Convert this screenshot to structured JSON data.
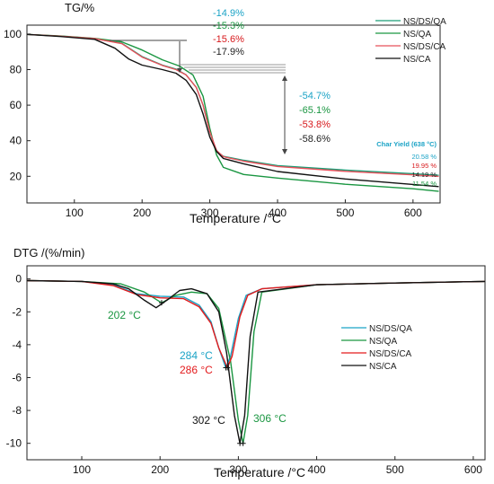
{
  "chart_data": [
    {
      "type": "line",
      "title": "",
      "ylabel": "TG/%",
      "xlabel": "Temperature /°C",
      "xlim": [
        30,
        640
      ],
      "ylim": [
        5,
        105
      ],
      "x_ticks": [
        "100",
        "200",
        "300",
        "400",
        "500",
        "600"
      ],
      "y_ticks": [
        "20",
        "40",
        "60",
        "80",
        "100"
      ],
      "legend_position": "top-right",
      "series": [
        {
          "name": "NS/DS/QA",
          "color": "#1b9e77",
          "points": [
            [
              30,
              99.8
            ],
            [
              80,
              98.8
            ],
            [
              130,
              97.4
            ],
            [
              170,
              94.8
            ],
            [
              200,
              87.3
            ],
            [
              230,
              82.5
            ],
            [
              250,
              80.3
            ],
            [
              265,
              77
            ],
            [
              280,
              70
            ],
            [
              290,
              60
            ],
            [
              300,
              45
            ],
            [
              310,
              34
            ],
            [
              320,
              31.2
            ],
            [
              350,
              29
            ],
            [
              400,
              26
            ],
            [
              500,
              23.5
            ],
            [
              600,
              21.4
            ],
            [
              638,
              20.58
            ]
          ]
        },
        {
          "name": "NS/QA",
          "color": "#1a9641",
          "points": [
            [
              30,
              99.8
            ],
            [
              80,
              98.9
            ],
            [
              130,
              97.6
            ],
            [
              170,
              95.6
            ],
            [
              200,
              91
            ],
            [
              230,
              85.5
            ],
            [
              255,
              82
            ],
            [
              275,
              77
            ],
            [
              290,
              65
            ],
            [
              300,
              47
            ],
            [
              310,
              32
            ],
            [
              320,
              25
            ],
            [
              350,
              21
            ],
            [
              400,
              19
            ],
            [
              500,
              15.5
            ],
            [
              600,
              13
            ],
            [
              638,
              11.54
            ]
          ]
        },
        {
          "name": "NS/DS/CA",
          "color": "#e8505b",
          "points": [
            [
              30,
              99.8
            ],
            [
              80,
              98.8
            ],
            [
              130,
              97.4
            ],
            [
              170,
              94.6
            ],
            [
              200,
              87
            ],
            [
              230,
              82.3
            ],
            [
              250,
              80
            ],
            [
              265,
              77
            ],
            [
              280,
              70
            ],
            [
              290,
              60
            ],
            [
              300,
              45
            ],
            [
              310,
              34.5
            ],
            [
              320,
              31
            ],
            [
              350,
              28.5
            ],
            [
              400,
              25.5
            ],
            [
              500,
              22.8
            ],
            [
              600,
              20.8
            ],
            [
              638,
              19.95
            ]
          ]
        },
        {
          "name": "NS/CA",
          "color": "#111111",
          "points": [
            [
              30,
              99.8
            ],
            [
              80,
              98.6
            ],
            [
              130,
              97
            ],
            [
              160,
              92
            ],
            [
              180,
              86
            ],
            [
              200,
              82.5
            ],
            [
              230,
              80
            ],
            [
              250,
              78
            ],
            [
              265,
              74
            ],
            [
              280,
              66
            ],
            [
              290,
              55
            ],
            [
              300,
              42
            ],
            [
              310,
              34
            ],
            [
              320,
              30
            ],
            [
              350,
              27
            ],
            [
              400,
              22.7
            ],
            [
              500,
              18.5
            ],
            [
              600,
              15.4
            ],
            [
              638,
              14.19
            ]
          ]
        }
      ],
      "annotations": {
        "group1": [
          {
            "text": "-14.9%",
            "color": "#1ba3c6"
          },
          {
            "text": "-15.3%",
            "color": "#1a9641"
          },
          {
            "text": "-15.6%",
            "color": "#d7191c"
          },
          {
            "text": "-17.9%",
            "color": "#222222"
          }
        ],
        "group2": [
          {
            "text": "-54.7%",
            "color": "#1ba3c6"
          },
          {
            "text": "-65.1%",
            "color": "#1a9641"
          },
          {
            "text": "-53.8%",
            "color": "#d7191c"
          },
          {
            "text": "-58.6%",
            "color": "#222222"
          }
        ],
        "char_yield_title": "Char Yield (638 °C)",
        "char_yield_title_color": "#1ba3c6",
        "char_yield_values": [
          {
            "text": "20.58 %",
            "color": "#1ba3c6"
          },
          {
            "text": "19.95 %",
            "color": "#d7191c"
          },
          {
            "text": "14.19 %",
            "color": "#222222"
          },
          {
            "text": "11.54 %",
            "color": "#1a9641"
          }
        ],
        "step_temps": [
          237,
          400
        ]
      }
    },
    {
      "type": "line",
      "title": "",
      "ylabel": "DTG /(%/min)",
      "xlabel": "Temperature /°C",
      "xlim": [
        30,
        615
      ],
      "ylim": [
        -11,
        0.8
      ],
      "x_ticks": [
        "100",
        "200",
        "300",
        "400",
        "500",
        "600"
      ],
      "y_ticks": [
        "0",
        "-2",
        "-4",
        "-6",
        "-8",
        "-10"
      ],
      "legend_position": "center-right",
      "series": [
        {
          "name": "NS/DS/QA",
          "color": "#1ba3c6",
          "points": [
            [
              30,
              -0.1
            ],
            [
              100,
              -0.15
            ],
            [
              140,
              -0.35
            ],
            [
              170,
              -0.9
            ],
            [
              200,
              -1.05
            ],
            [
              230,
              -1.1
            ],
            [
              250,
              -1.6
            ],
            [
              265,
              -2.6
            ],
            [
              275,
              -4.2
            ],
            [
              284,
              -5.4
            ],
            [
              290,
              -4.7
            ],
            [
              300,
              -2.4
            ],
            [
              310,
              -1.0
            ],
            [
              330,
              -0.6
            ],
            [
              400,
              -0.35
            ],
            [
              500,
              -0.25
            ],
            [
              615,
              -0.15
            ]
          ]
        },
        {
          "name": "NS/QA",
          "color": "#1a9641",
          "points": [
            [
              30,
              -0.1
            ],
            [
              100,
              -0.15
            ],
            [
              150,
              -0.3
            ],
            [
              180,
              -0.8
            ],
            [
              202,
              -1.45
            ],
            [
              220,
              -1.0
            ],
            [
              240,
              -0.8
            ],
            [
              260,
              -0.9
            ],
            [
              275,
              -1.8
            ],
            [
              290,
              -5.0
            ],
            [
              300,
              -8.6
            ],
            [
              306,
              -10.0
            ],
            [
              312,
              -8.3
            ],
            [
              320,
              -3.2
            ],
            [
              330,
              -0.8
            ],
            [
              400,
              -0.35
            ],
            [
              500,
              -0.25
            ],
            [
              615,
              -0.15
            ]
          ]
        },
        {
          "name": "NS/DS/CA",
          "color": "#e31a1c",
          "points": [
            [
              30,
              -0.1
            ],
            [
              100,
              -0.15
            ],
            [
              140,
              -0.4
            ],
            [
              170,
              -0.95
            ],
            [
              200,
              -1.15
            ],
            [
              230,
              -1.2
            ],
            [
              250,
              -1.7
            ],
            [
              265,
              -2.7
            ],
            [
              275,
              -4.2
            ],
            [
              286,
              -5.4
            ],
            [
              292,
              -4.7
            ],
            [
              302,
              -2.3
            ],
            [
              312,
              -1.0
            ],
            [
              330,
              -0.6
            ],
            [
              400,
              -0.35
            ],
            [
              500,
              -0.25
            ],
            [
              615,
              -0.15
            ]
          ]
        },
        {
          "name": "NS/CA",
          "color": "#111111",
          "points": [
            [
              30,
              -0.1
            ],
            [
              100,
              -0.15
            ],
            [
              140,
              -0.3
            ],
            [
              160,
              -0.6
            ],
            [
              180,
              -1.3
            ],
            [
              195,
              -1.75
            ],
            [
              210,
              -1.25
            ],
            [
              225,
              -0.7
            ],
            [
              240,
              -0.6
            ],
            [
              260,
              -0.9
            ],
            [
              275,
              -2.0
            ],
            [
              285,
              -4.5
            ],
            [
              295,
              -8.3
            ],
            [
              302,
              -10.0
            ],
            [
              308,
              -8.3
            ],
            [
              315,
              -3.5
            ],
            [
              325,
              -0.8
            ],
            [
              400,
              -0.35
            ],
            [
              500,
              -0.25
            ],
            [
              615,
              -0.15
            ]
          ]
        }
      ],
      "annotations": {
        "peaks": [
          {
            "text": "202 °C",
            "color": "#1a9641",
            "x": 202,
            "y": -1.45
          },
          {
            "text": "284 °C",
            "color": "#1ba3c6",
            "x": 284,
            "y": -5.4
          },
          {
            "text": "286 °C",
            "color": "#e31a1c",
            "x": 286,
            "y": -5.4
          },
          {
            "text": "302 °C",
            "color": "#111111",
            "x": 302,
            "y": -10.0
          },
          {
            "text": "306 °C",
            "color": "#1a9641",
            "x": 306,
            "y": -10.0
          }
        ]
      }
    }
  ]
}
